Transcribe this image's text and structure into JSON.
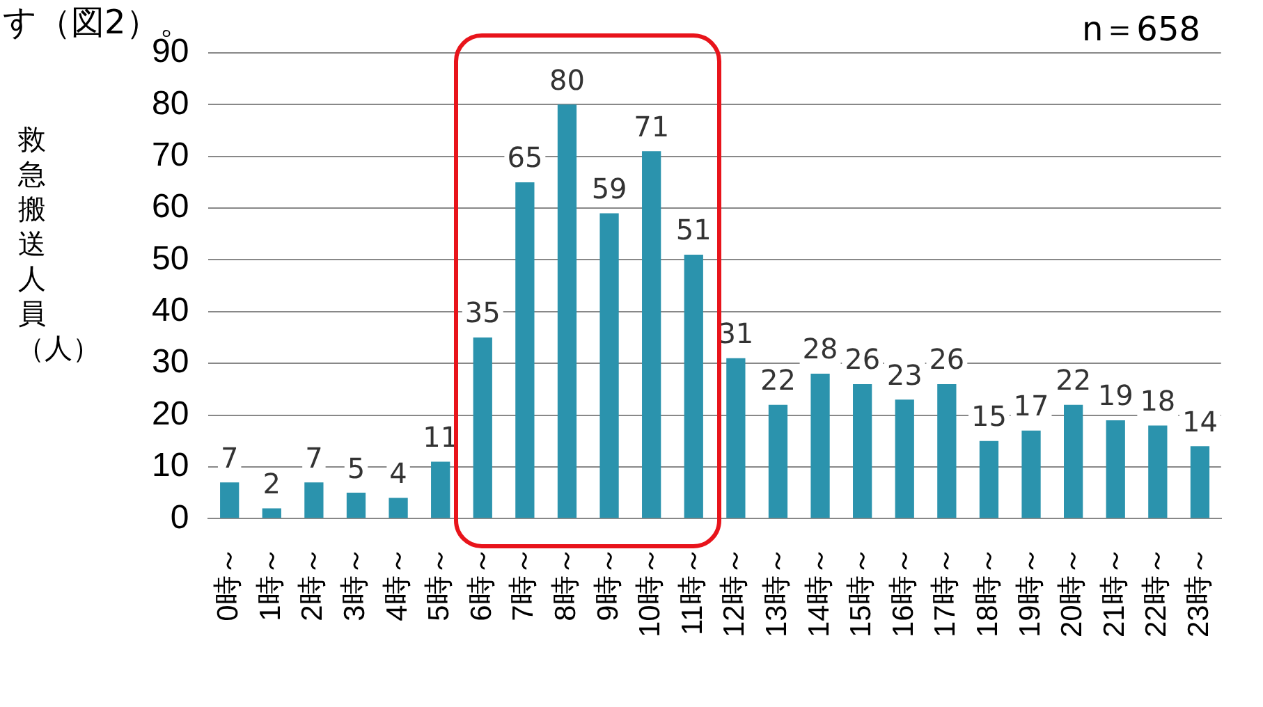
{
  "chart_data": {
    "type": "bar",
    "ylabel": "救急搬送人員（人）",
    "categories": [
      "0時～",
      "1時～",
      "2時～",
      "3時～",
      "4時～",
      "5時～",
      "6時～",
      "7時～",
      "8時～",
      "9時～",
      "10時～",
      "11時～",
      "12時～",
      "13時～",
      "14時～",
      "15時～",
      "16時～",
      "17時～",
      "18時～",
      "19時～",
      "20時～",
      "21時～",
      "22時～",
      "23時～"
    ],
    "values": [
      7,
      2,
      7,
      5,
      4,
      11,
      35,
      65,
      80,
      59,
      71,
      51,
      31,
      22,
      28,
      26,
      23,
      26,
      15,
      17,
      22,
      19,
      18,
      14
    ],
    "color": "#2b93ad",
    "ylim": [
      0,
      90
    ],
    "yticks": [
      0,
      10,
      20,
      30,
      40,
      50,
      60,
      70,
      80,
      90
    ],
    "grid": "y",
    "data_labels": true,
    "legend": false,
    "annotations": [
      "す（図2）。",
      "n＝658"
    ]
  }
}
